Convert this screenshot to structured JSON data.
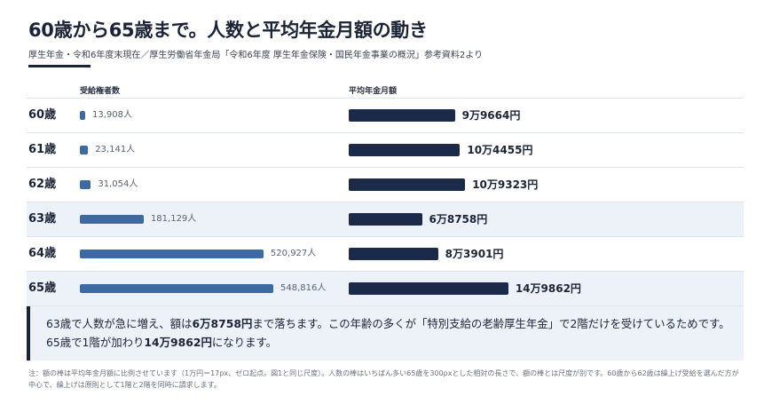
{
  "header": {
    "title": "60歳から65歳まで。人数と平均年金月額の動き",
    "subtitle": "厚生年金・令和6年度末現在／厚生労働省年金局「令和6年度 厚生年金保険・国民年金事業の概況」参考資料2より"
  },
  "columns": {
    "left": "受給権者数",
    "right": "平均年金月額"
  },
  "chart_data": {
    "type": "bar",
    "categories": [
      "60歳",
      "61歳",
      "62歳",
      "63歳",
      "64歳",
      "65歳"
    ],
    "series": [
      {
        "name": "受給権者数",
        "values": [
          13908,
          23141,
          31054,
          181129,
          520927,
          548816
        ],
        "labels": [
          "13,908人",
          "23,141人",
          "31,054人",
          "181,129人",
          "520,927人",
          "548,816人"
        ]
      },
      {
        "name": "平均年金月額",
        "values": [
          99664,
          104455,
          109323,
          68758,
          83901,
          149862
        ],
        "labels": [
          "9万9664円",
          "10万4455円",
          "10万9323円",
          "6万8758円",
          "8万3901円",
          "14万9862円"
        ]
      }
    ],
    "colors": {
      "count_bar": "#3e6aa3",
      "amount_bar": "#1c2a4a",
      "row_shade": "#edf2f9"
    }
  },
  "callout": {
    "t1": "63歳で人数が急に増え、額は",
    "b1": "6万8758円",
    "t2": "まで落ちます。この年齢の多くが「特別支給の老齢厚生年金」で2階だけを受けているためです。65歳で1階が加わり",
    "b2": "14万9862円",
    "t3": "になります。"
  },
  "note": "注：額の棒は平均年金月額に比例させています（1万円＝17px、ゼロ起点。図1と同じ尺度）。人数の棒はいちばん多い65歳を300pxとした相対の長さで、額の棒とは尺度が別です。60歳から62歳は繰上げ受給を選んだ方が中心で、繰上げは原則として1階と2階を同時に請求します。"
}
